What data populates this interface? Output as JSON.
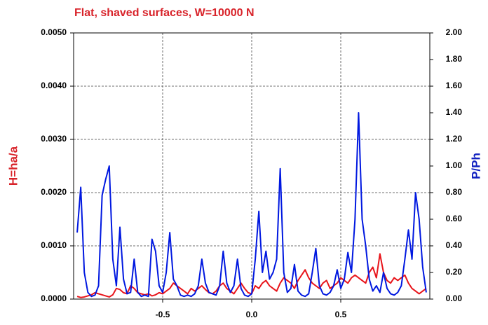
{
  "chart_data": {
    "type": "line",
    "title": "Flat, shaved surfaces, W=10000 N",
    "y_label": "H=ha/a",
    "y2_label": "P/Ph",
    "xlim": [
      -1,
      1
    ],
    "xticks": [
      -0.5,
      {
        "value": 0,
        "label": "0.0"
      },
      0.5
    ],
    "ylim": [
      0,
      0.005
    ],
    "yticks": [
      {
        "value": 0,
        "label": "0.0000"
      },
      {
        "value": 0.001,
        "label": "0.0010"
      },
      {
        "value": 0.002,
        "label": "0.0020"
      },
      {
        "value": 0.003,
        "label": "0.0030"
      },
      {
        "value": 0.004,
        "label": "0.0040"
      },
      {
        "value": 0.005,
        "label": "0.0050"
      }
    ],
    "y2lim": [
      0,
      2
    ],
    "y2ticks": [
      {
        "value": 0,
        "label": "0.00"
      },
      {
        "value": 0.2,
        "label": "0.20"
      },
      {
        "value": 0.4,
        "label": "0.40"
      },
      {
        "value": 0.6,
        "label": "0.60"
      },
      {
        "value": 0.8,
        "label": "0.80"
      },
      {
        "value": 1,
        "label": "1.00"
      },
      {
        "value": 1.2,
        "label": "1.20"
      },
      {
        "value": 1.4,
        "label": "1.40"
      },
      {
        "value": 1.6,
        "label": "1.60"
      },
      {
        "value": 1.8,
        "label": "1.80"
      },
      {
        "value": 2,
        "label": "2.00"
      }
    ],
    "grid": true,
    "x": [
      -0.98,
      -0.96,
      -0.94,
      -0.92,
      -0.9,
      -0.88,
      -0.86,
      -0.84,
      -0.82,
      -0.8,
      -0.78,
      -0.76,
      -0.74,
      -0.72,
      -0.7,
      -0.68,
      -0.66,
      -0.64,
      -0.62,
      -0.6,
      -0.58,
      -0.56,
      -0.54,
      -0.52,
      -0.5,
      -0.48,
      -0.46,
      -0.44,
      -0.42,
      -0.4,
      -0.38,
      -0.36,
      -0.34,
      -0.32,
      -0.3,
      -0.28,
      -0.26,
      -0.24,
      -0.22,
      -0.2,
      -0.18,
      -0.16,
      -0.14,
      -0.12,
      -0.1,
      -0.08,
      -0.06,
      -0.04,
      -0.02,
      0,
      0.02,
      0.04,
      0.06,
      0.08,
      0.1,
      0.12,
      0.14,
      0.16,
      0.18,
      0.2,
      0.22,
      0.24,
      0.26,
      0.28,
      0.3,
      0.32,
      0.34,
      0.36,
      0.38,
      0.4,
      0.42,
      0.44,
      0.46,
      0.48,
      0.5,
      0.52,
      0.54,
      0.56,
      0.58,
      0.6,
      0.62,
      0.64,
      0.66,
      0.68,
      0.7,
      0.72,
      0.74,
      0.76,
      0.78,
      0.8,
      0.82,
      0.84,
      0.86,
      0.88,
      0.9,
      0.92,
      0.94,
      0.96,
      0.98
    ],
    "series": [
      {
        "color": "#e8141a",
        "values": [
          5e-05,
          3e-05,
          4e-05,
          6e-05,
          8e-05,
          0.00012,
          0.0001,
          8e-05,
          6e-05,
          4e-05,
          8e-05,
          0.0002,
          0.00018,
          0.00012,
          0.0001,
          0.00025,
          0.0002,
          0.00012,
          0.0001,
          8e-05,
          0.0001,
          6e-05,
          8e-05,
          0.00012,
          0.0001,
          0.00015,
          0.0002,
          0.0003,
          0.00025,
          0.0002,
          0.00015,
          0.0001,
          0.0002,
          0.00015,
          0.0002,
          0.00025,
          0.00018,
          0.00012,
          0.0001,
          0.00015,
          0.00025,
          0.0003,
          0.0002,
          0.00015,
          0.0001,
          0.0002,
          0.0003,
          0.0002,
          0.00012,
          0.0001,
          0.00025,
          0.0002,
          0.0003,
          0.00035,
          0.00025,
          0.0002,
          0.00015,
          0.0003,
          0.0004,
          0.00035,
          0.0003,
          0.0002,
          0.00035,
          0.00045,
          0.00055,
          0.0004,
          0.0003,
          0.00025,
          0.0002,
          0.0003,
          0.00035,
          0.0002,
          0.00025,
          0.0003,
          0.0004,
          0.00035,
          0.0003,
          0.0004,
          0.00045,
          0.0004,
          0.00035,
          0.0003,
          0.0005,
          0.0006,
          0.0004,
          0.00085,
          0.0005,
          0.00035,
          0.0003,
          0.0004,
          0.00035,
          0.0004,
          0.00045,
          0.0003,
          0.0002,
          0.00015,
          0.0001,
          0.00015,
          0.0002
        ]
      },
      {
        "color": "#0018e0",
        "axis": "y2",
        "values": [
          0.5,
          0.84,
          0.2,
          0.05,
          0.02,
          0.03,
          0.1,
          0.78,
          0.9,
          1.0,
          0.3,
          0.1,
          0.54,
          0.15,
          0.04,
          0.05,
          0.3,
          0.05,
          0.02,
          0.03,
          0.02,
          0.45,
          0.36,
          0.1,
          0.05,
          0.2,
          0.5,
          0.15,
          0.1,
          0.03,
          0.02,
          0.03,
          0.02,
          0.04,
          0.1,
          0.3,
          0.12,
          0.05,
          0.04,
          0.03,
          0.1,
          0.36,
          0.12,
          0.05,
          0.1,
          0.3,
          0.08,
          0.03,
          0.02,
          0.04,
          0.3,
          0.66,
          0.2,
          0.36,
          0.15,
          0.2,
          0.3,
          0.98,
          0.2,
          0.05,
          0.08,
          0.26,
          0.06,
          0.03,
          0.02,
          0.04,
          0.2,
          0.38,
          0.1,
          0.04,
          0.03,
          0.05,
          0.1,
          0.22,
          0.08,
          0.15,
          0.35,
          0.2,
          0.6,
          1.4,
          0.6,
          0.4,
          0.15,
          0.06,
          0.1,
          0.05,
          0.2,
          0.08,
          0.04,
          0.03,
          0.05,
          0.1,
          0.3,
          0.52,
          0.3,
          0.8,
          0.6,
          0.24,
          0.05
        ]
      }
    ]
  }
}
